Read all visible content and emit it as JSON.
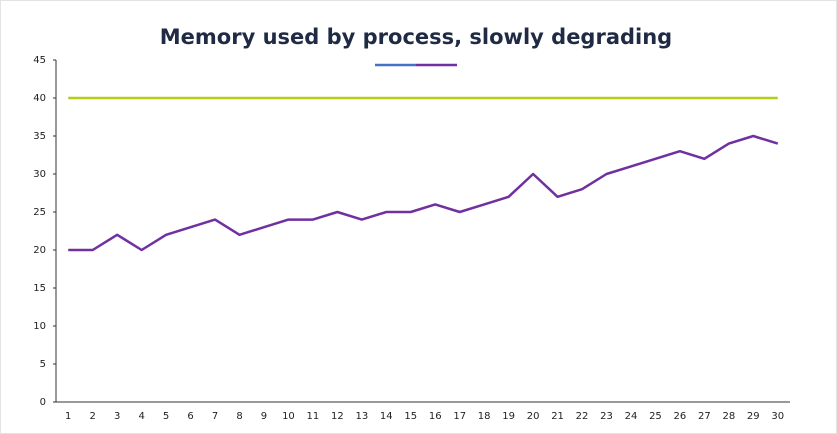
{
  "chart_data": {
    "type": "line",
    "title": "Memory used by process, slowly degrading",
    "categories": [
      "1",
      "2",
      "3",
      "4",
      "5",
      "6",
      "7",
      "8",
      "9",
      "10",
      "11",
      "12",
      "13",
      "14",
      "15",
      "16",
      "17",
      "18",
      "19",
      "20",
      "21",
      "22",
      "23",
      "24",
      "25",
      "26",
      "27",
      "28",
      "29",
      "30"
    ],
    "series": [
      {
        "color": "#b5cc18",
        "values": [
          40,
          40,
          40,
          40,
          40,
          40,
          40,
          40,
          40,
          40,
          40,
          40,
          40,
          40,
          40,
          40,
          40,
          40,
          40,
          40,
          40,
          40,
          40,
          40,
          40,
          40,
          40,
          40,
          40,
          40
        ]
      },
      {
        "color": "#7030a0",
        "values": [
          20,
          20,
          22,
          20,
          22,
          23,
          24,
          22,
          23,
          24,
          24,
          25,
          24,
          25,
          25,
          26,
          25,
          26,
          27,
          30,
          27,
          28,
          30,
          31,
          32,
          33,
          32,
          34,
          35,
          34
        ]
      }
    ],
    "ylim": [
      0,
      45
    ],
    "yticks": [
      0,
      5,
      10,
      15,
      20,
      25,
      30,
      35,
      40,
      45
    ],
    "grid": false
  }
}
